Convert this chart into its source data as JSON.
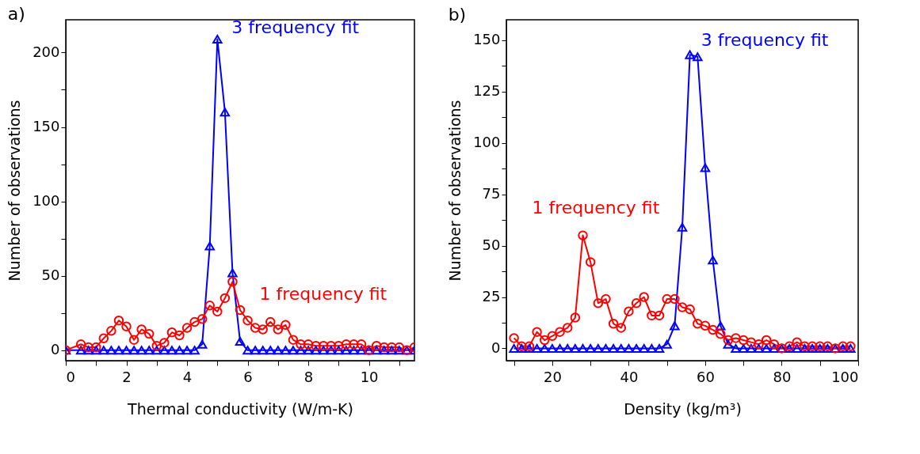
{
  "chart_data": [
    {
      "type": "line",
      "title": "a)",
      "xlabel": "Thermal conductivity (W/m-K)",
      "ylabel": "Number of observations",
      "xlim": [
        0,
        11.5
      ],
      "ylim": [
        -7,
        222
      ],
      "xticks": [
        0,
        {
          "value": 1,
          "label": null
        },
        2,
        {
          "value": 3,
          "label": null
        },
        4,
        {
          "value": 5,
          "label": null
        },
        6,
        {
          "value": 7,
          "label": null
        },
        8,
        {
          "value": 9,
          "label": null
        },
        10,
        {
          "value": 11,
          "label": null
        }
      ],
      "yticks": [
        0,
        {
          "value": 25,
          "label": null
        },
        50,
        {
          "value": 75,
          "label": null
        },
        100,
        {
          "value": 125,
          "label": null
        },
        150,
        {
          "value": 175,
          "label": null
        },
        200
      ],
      "grid": false,
      "legend": false,
      "x": [
        0,
        0.5,
        0.75,
        1.0,
        1.25,
        1.5,
        1.75,
        2.0,
        2.25,
        2.5,
        2.75,
        3.0,
        3.25,
        3.5,
        3.75,
        4.0,
        4.25,
        4.5,
        4.75,
        5.0,
        5.25,
        5.5,
        5.75,
        6.0,
        6.25,
        6.5,
        6.75,
        7.0,
        7.25,
        7.5,
        7.75,
        8.0,
        8.25,
        8.5,
        8.75,
        9.0,
        9.25,
        9.5,
        9.75,
        10.0,
        10.25,
        10.5,
        10.75,
        11.0,
        11.25,
        11.5
      ],
      "series": [
        {
          "name": "3 frequency fit",
          "color": "#0000ff",
          "marker": "triangle",
          "values": [
            0,
            0,
            0,
            0,
            0,
            0,
            0,
            0,
            0,
            0,
            0,
            0,
            0,
            0,
            0,
            0,
            0,
            4,
            70,
            209,
            160,
            52,
            6,
            0,
            0,
            0,
            0,
            0,
            0,
            0,
            0,
            0,
            0,
            0,
            0,
            0,
            0,
            0,
            0,
            0,
            0,
            0,
            0,
            0,
            0,
            0
          ]
        },
        {
          "name": "1 frequency fit",
          "color": "#ff0000",
          "marker": "circle",
          "values": [
            0,
            4,
            2,
            2,
            8,
            13,
            20,
            16,
            7,
            14,
            11,
            3,
            5,
            12,
            10,
            15,
            19,
            21,
            30,
            26,
            35,
            46,
            27,
            20,
            15,
            14,
            19,
            14,
            17,
            7,
            4,
            4,
            3,
            3,
            3,
            3,
            4,
            4,
            4,
            0,
            3,
            2,
            2,
            2,
            0,
            2
          ]
        }
      ]
    },
    {
      "type": "line",
      "title": "b)",
      "xlabel": "Density (kg/m³)",
      "ylabel": "Number of observations",
      "xlim": [
        8,
        100
      ],
      "ylim": [
        -6,
        160
      ],
      "xticks": [
        {
          "value": 10,
          "label": null
        },
        20,
        {
          "value": 30,
          "label": null
        },
        40,
        {
          "value": 50,
          "label": null
        },
        60,
        {
          "value": 70,
          "label": null
        },
        80,
        {
          "value": 90,
          "label": null
        },
        100
      ],
      "yticks": [
        0,
        {
          "value": 12.5,
          "label": null
        },
        25,
        {
          "value": 37.5,
          "label": null
        },
        50,
        {
          "value": 62.5,
          "label": null
        },
        75,
        {
          "value": 87.5,
          "label": null
        },
        100,
        {
          "value": 112.5,
          "label": null
        },
        125,
        {
          "value": 137.5,
          "label": null
        },
        150
      ],
      "grid": false,
      "legend": false,
      "x": [
        10,
        12,
        14,
        16,
        18,
        20,
        22,
        24,
        26,
        28,
        30,
        32,
        34,
        36,
        38,
        40,
        42,
        44,
        46,
        48,
        50,
        52,
        54,
        56,
        58,
        60,
        62,
        64,
        66,
        68,
        70,
        72,
        74,
        76,
        78,
        80,
        82,
        84,
        86,
        88,
        90,
        92,
        94,
        96,
        98
      ],
      "series": [
        {
          "name": "3 frequency fit",
          "color": "#0000ff",
          "marker": "triangle",
          "values": [
            0,
            0,
            0,
            0,
            0,
            0,
            0,
            0,
            0,
            0,
            0,
            0,
            0,
            0,
            0,
            0,
            0,
            0,
            0,
            0,
            2,
            11,
            59,
            143,
            142,
            88,
            43,
            11,
            2,
            0,
            0,
            0,
            0,
            0,
            0,
            0,
            0,
            0,
            0,
            0,
            0,
            0,
            0,
            0,
            0
          ]
        },
        {
          "name": "1 frequency fit",
          "color": "#ff0000",
          "marker": "circle",
          "values": [
            5,
            1,
            1,
            8,
            4,
            6,
            8,
            10,
            15,
            55,
            42,
            22,
            24,
            12,
            10,
            18,
            22,
            25,
            16,
            16,
            24,
            24,
            20,
            19,
            12,
            11,
            9,
            7,
            4,
            5,
            4,
            3,
            2,
            4,
            2,
            0,
            1,
            3,
            1,
            1,
            1,
            1,
            0,
            1,
            1
          ]
        }
      ]
    }
  ]
}
